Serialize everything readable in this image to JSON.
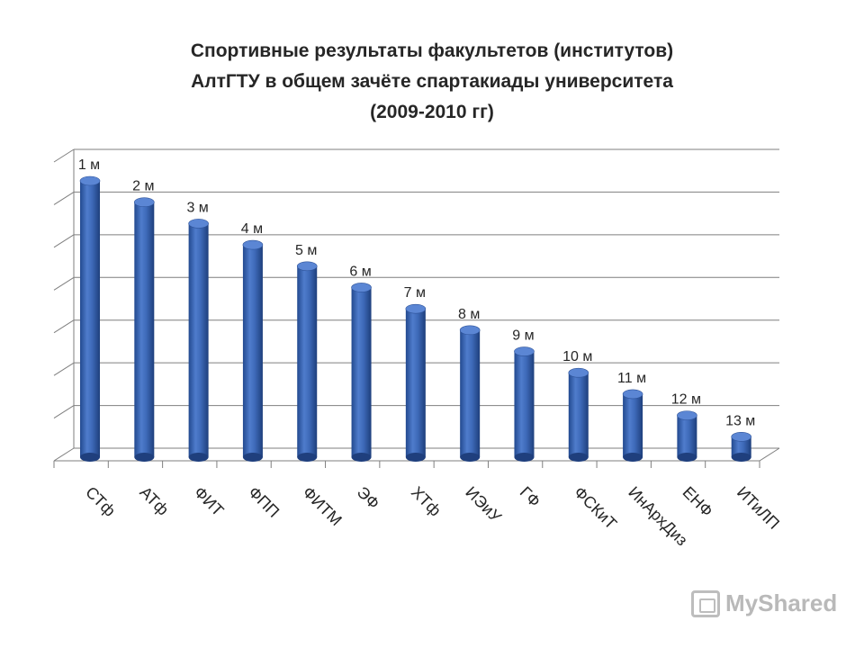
{
  "chart_data": {
    "type": "bar",
    "title_lines": [
      "Спортивные результаты факультетов (институтов)",
      "АлтГТУ в общем зачёте спартакиады университета",
      "(2009-2010 гг)"
    ],
    "categories": [
      "СТф",
      "АТф",
      "ФИТ",
      "ФПП",
      "ФИТМ",
      "ЭФ",
      "ХТф",
      "ИЭиУ",
      "ГФ",
      "ФСКиТ",
      "ИнАрхДиз",
      "ЕНФ",
      "ИТиЛП"
    ],
    "values": [
      13,
      12,
      11,
      10,
      9,
      8,
      7,
      6,
      5,
      4,
      3,
      2,
      1
    ],
    "data_labels": [
      "1 м",
      "2 м",
      "3 м",
      "4 м",
      "5 м",
      "6 м",
      "7 м",
      "8 м",
      "9 м",
      "10 м",
      "11 м",
      "12 м",
      "13 м"
    ],
    "ylim": [
      0,
      14
    ],
    "grid": true,
    "bar_color": "#3a66b4"
  },
  "watermark": "MyShared"
}
